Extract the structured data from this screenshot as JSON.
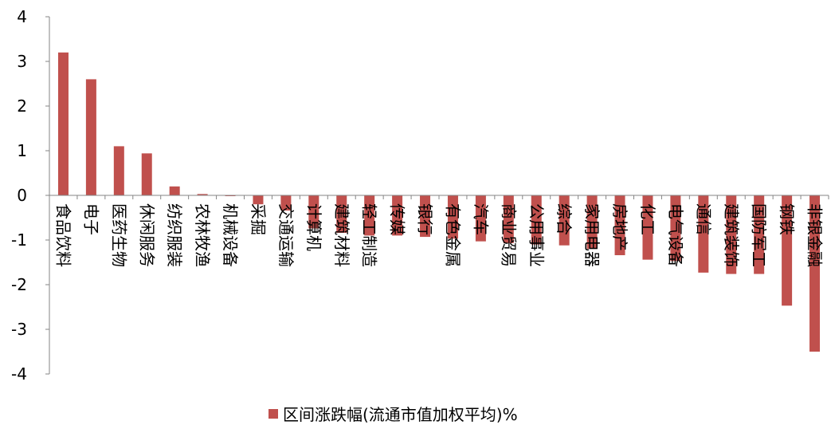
{
  "chart_data": {
    "type": "bar",
    "categories": [
      "食品饮料",
      "电子",
      "医药生物",
      "休闲服务",
      "纺织服装",
      "农林牧渔",
      "机械设备",
      "采掘",
      "交通运输",
      "计算机",
      "建筑材料",
      "轻工制造",
      "传媒",
      "银行",
      "有色金属",
      "汽车",
      "商业贸易",
      "公用事业",
      "综合",
      "家用电器",
      "房地产",
      "化工",
      "电气设备",
      "通信",
      "建筑装饰",
      "国防军工",
      "钢铁",
      "非银金融"
    ],
    "series": [
      {
        "name": "区间涨跌幅(流通市值加权平均)%",
        "color": "#C0504D",
        "values": [
          3.2,
          2.6,
          1.1,
          0.94,
          0.2,
          0.03,
          -0.01,
          -0.2,
          -0.34,
          -0.74,
          -0.84,
          -0.9,
          -0.9,
          -0.93,
          -0.97,
          -1.03,
          -1.07,
          -1.1,
          -1.12,
          -1.2,
          -1.34,
          -1.44,
          -1.47,
          -1.73,
          -1.76,
          -1.76,
          -2.47,
          -3.5
        ]
      }
    ],
    "ylim": [
      -4,
      4
    ],
    "yticks": [
      "-4",
      "-3",
      "-2",
      "-1",
      "0",
      "1",
      "2",
      "3",
      "4"
    ],
    "grid": false,
    "legend_position": "bottom"
  }
}
